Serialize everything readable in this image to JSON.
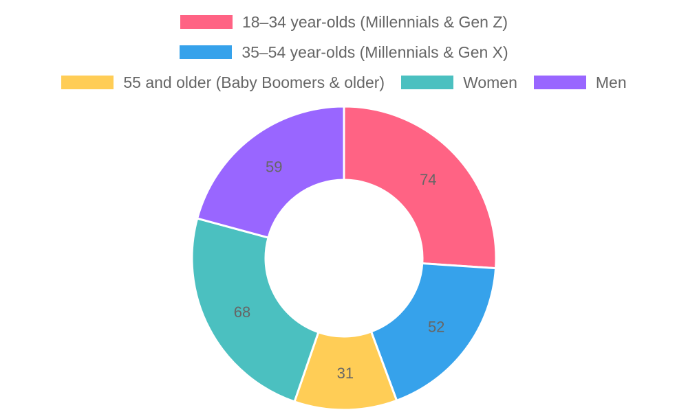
{
  "chart_data": {
    "type": "pie",
    "variant": "doughnut",
    "legend_position": "top",
    "categories": [
      "18–34 year-olds (Millennials & Gen Z)",
      "35–54 year-olds (Millennials & Gen X)",
      "55 and older (Baby Boomers & older)",
      "Women",
      "Men"
    ],
    "values": [
      74,
      52,
      31,
      68,
      59
    ],
    "colors": [
      "#ff6384",
      "#36a2eb",
      "#ffcd56",
      "#4bc0c0",
      "#9966ff"
    ]
  }
}
